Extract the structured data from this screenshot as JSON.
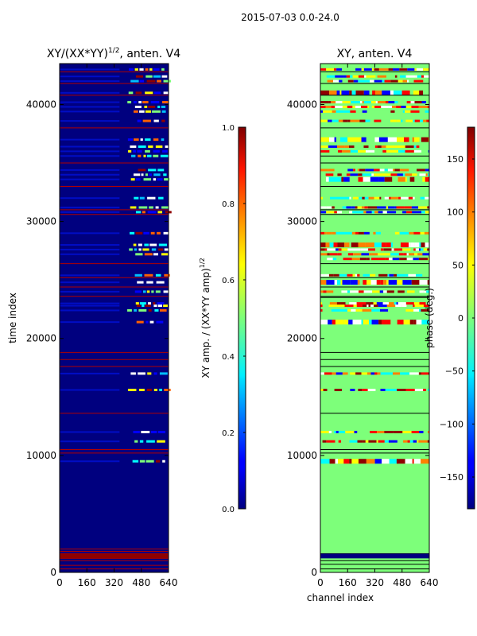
{
  "suptitle": "2015-07-03 0.0-24.0",
  "chart_data": [
    {
      "type": "heatmap",
      "title": "XY/(XX*YY)",
      "title_superscript": "1/2",
      "title_suffix": ", anten. V4",
      "xlabel": "",
      "ylabel": "time index",
      "xticks": [
        0,
        160,
        320,
        480,
        640
      ],
      "yticks": [
        0,
        10000,
        20000,
        30000,
        40000
      ],
      "xlim": [
        0,
        640
      ],
      "ylim": [
        0,
        43500
      ],
      "background_color": "#00007f",
      "colorbar": {
        "label": "XY amp. / (XX*YY amp)",
        "label_superscript": "1/2",
        "range": [
          0.0,
          1.0
        ],
        "ticks": [
          "0.0",
          "0.2",
          "0.4",
          "0.6",
          "0.8",
          "1.0"
        ]
      },
      "flag_rows": [
        2000,
        1800,
        1600,
        1400,
        1200,
        1000,
        600,
        300,
        10200,
        10500,
        13600,
        17600,
        18200,
        18800,
        23600,
        24400,
        25200,
        26400,
        30600,
        31000,
        33000,
        35000,
        38000,
        40800,
        41800,
        42800
      ],
      "bright_rows": [
        9500,
        11200,
        12000,
        15600,
        17000,
        21400,
        22400,
        22800,
        23000,
        24000,
        24800,
        25400,
        27200,
        27600,
        28000,
        29000,
        30800,
        31200,
        32000,
        33600,
        34000,
        34400,
        35600,
        36000,
        36400,
        37000,
        38600,
        39400,
        39800,
        40200,
        41000,
        42000,
        42400,
        43000
      ]
    },
    {
      "type": "heatmap",
      "title": "XY, anten. V4",
      "xlabel": "channel index",
      "ylabel": "",
      "xticks": [
        0,
        160,
        320,
        480,
        640
      ],
      "yticks": [
        0,
        10000,
        20000,
        30000,
        40000
      ],
      "xlim": [
        0,
        640
      ],
      "ylim": [
        0,
        43500
      ],
      "background_color": "#7dff7a",
      "colorbar": {
        "label": "phase (deg.)",
        "range": [
          -180,
          180
        ],
        "ticks": [
          "−150",
          "−100",
          "−50",
          "0",
          "50",
          "100",
          "150"
        ]
      },
      "flag_rows": [
        1600,
        1400,
        1000,
        700,
        300,
        10200,
        10500,
        13600,
        17600,
        18200,
        18800,
        23500,
        23600,
        24400,
        25200,
        26400,
        30600,
        31000,
        33000,
        35000,
        35600,
        38000,
        40800,
        41800,
        42800
      ],
      "bright_rows": [
        9500,
        11200,
        12000,
        15600,
        17000,
        21400,
        22400,
        22800,
        23000,
        24000,
        24800,
        25400,
        26800,
        27200,
        27600,
        28000,
        29000,
        30800,
        31200,
        32000,
        33600,
        34000,
        34400,
        36000,
        36400,
        37000,
        38600,
        39400,
        39800,
        40200,
        41000,
        42000,
        42400,
        43000
      ]
    }
  ]
}
